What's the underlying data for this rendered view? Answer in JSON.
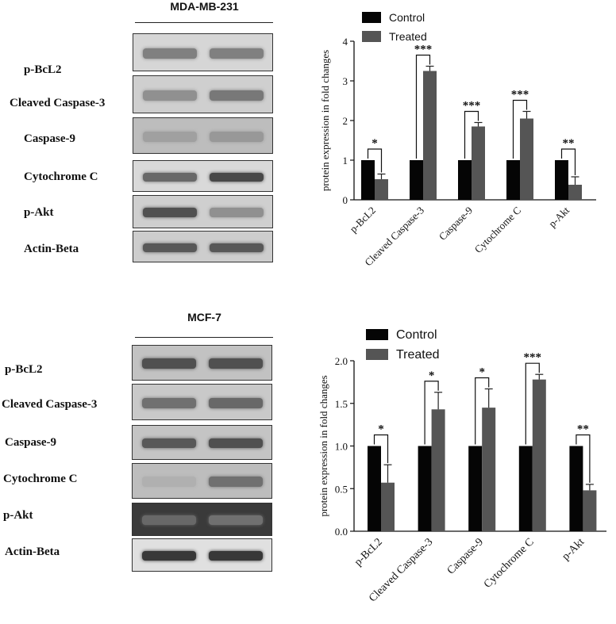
{
  "colors": {
    "control": "#050505",
    "treated": "#555555"
  },
  "panels": [
    {
      "blot_title": "MDA-MB-231",
      "blot_labels": [
        "p-BcL2",
        "Cleaved Caspase-3",
        "Caspase-9",
        "Cytochrome C",
        "p-Akt",
        "Actin-Beta"
      ],
      "blot_intensity": {
        "control": [
          0.45,
          0.35,
          0.25,
          0.6,
          0.75,
          0.7
        ],
        "treated": [
          0.45,
          0.5,
          0.3,
          0.8,
          0.35,
          0.7
        ]
      },
      "blot_background": [
        "#d6d6d6",
        "#cfcfcf",
        "#bdbdbd",
        "#d9d9d9",
        "#cfcfcf",
        "#cdcdcd"
      ]
    },
    {
      "blot_title": "MCF-7",
      "blot_labels": [
        "p-BcL2",
        "Cleaved Caspase-3",
        "Caspase-9",
        "Cytochrome C",
        "p-Akt",
        "Actin-Beta"
      ],
      "blot_intensity": {
        "control": [
          0.75,
          0.55,
          0.7,
          0.15,
          0.6,
          0.9
        ],
        "treated": [
          0.75,
          0.6,
          0.75,
          0.55,
          0.55,
          0.9
        ]
      },
      "blot_background": [
        "#c2c2c2",
        "#c9c9c9",
        "#c4c4c4",
        "#bdbdbd",
        "#3a3a3a",
        "#e0e0e0"
      ]
    }
  ],
  "chart_data": [
    {
      "type": "bar",
      "categories": [
        "p-BcL2",
        "Cleaved Caspase-3",
        "Caspase-9",
        "Cytochrome C",
        "p-Akt"
      ],
      "series": [
        {
          "name": "Control",
          "values": [
            1,
            1,
            1,
            1,
            1
          ],
          "errors": [
            0,
            0,
            0,
            0,
            0
          ]
        },
        {
          "name": "Treated",
          "values": [
            0.52,
            3.25,
            1.85,
            2.05,
            0.38
          ],
          "errors": [
            0.13,
            0.12,
            0.1,
            0.18,
            0.2
          ]
        }
      ],
      "significance": [
        "*",
        "***",
        "***",
        "***",
        "**"
      ],
      "ylabel": "protein expression in fold changes",
      "xlabel": "",
      "ylim": [
        0,
        4
      ],
      "yticks": [
        0,
        1,
        2,
        3,
        4
      ],
      "ytick_labels": [
        "0",
        "1",
        "2",
        "3",
        "4"
      ],
      "legend": "top-left",
      "grid": false
    },
    {
      "type": "bar",
      "categories": [
        "p-BcL2",
        "Cleaved Caspase-3",
        "Caspase-9",
        "Cytochrome C",
        "p-Akt"
      ],
      "series": [
        {
          "name": "Control",
          "values": [
            1,
            1,
            1,
            1,
            1
          ],
          "errors": [
            0,
            0,
            0,
            0,
            0
          ]
        },
        {
          "name": "Treated",
          "values": [
            0.57,
            1.43,
            1.45,
            1.78,
            0.48
          ],
          "errors": [
            0.21,
            0.2,
            0.22,
            0.06,
            0.07
          ]
        }
      ],
      "significance": [
        "*",
        "*",
        "*",
        "***",
        "**"
      ],
      "ylabel": "protein expression in fold changes",
      "xlabel": "",
      "ylim": [
        0,
        2
      ],
      "yticks": [
        0,
        0.5,
        1,
        1.5,
        2
      ],
      "ytick_labels": [
        "0.0",
        "0.5",
        "1.0",
        "1.5",
        "2.0"
      ],
      "legend": "top-left",
      "grid": false
    }
  ]
}
